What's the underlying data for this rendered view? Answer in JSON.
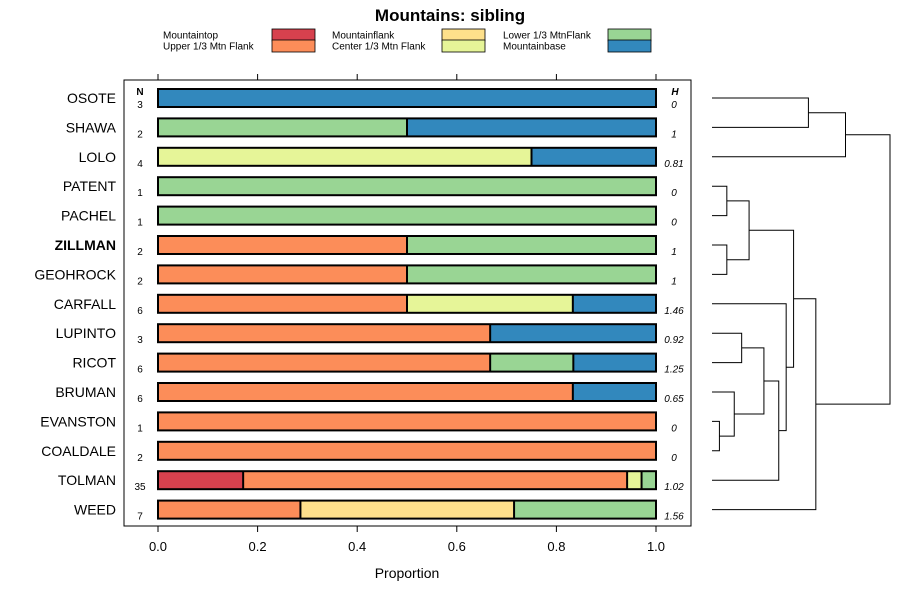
{
  "chart_data": {
    "type": "stacked-bar-horizontal",
    "title": "Mountains: sibling",
    "xlabel": "Proportion",
    "xlim": [
      0,
      1
    ],
    "xticks": [
      "0.0",
      "0.2",
      "0.4",
      "0.6",
      "0.8",
      "1.0"
    ],
    "n_header": "N",
    "h_header": "H",
    "legend": [
      {
        "name": "Mountaintop",
        "color": "#d7414e"
      },
      {
        "name": "Upper 1/3 Mtn Flank",
        "color": "#fc8d59"
      },
      {
        "name": "Mountainflank",
        "color": "#fee08b"
      },
      {
        "name": "Center 1/3 Mtn Flank",
        "color": "#e6f598"
      },
      {
        "name": "Lower 1/3 MtnFlank",
        "color": "#99d594"
      },
      {
        "name": "Mountainbase",
        "color": "#3288bd"
      }
    ],
    "rows": [
      {
        "label": "OSOTE",
        "bold": false,
        "n": "3",
        "h": "0",
        "values": [
          0,
          0,
          0,
          0,
          0,
          1
        ]
      },
      {
        "label": "SHAWA",
        "bold": false,
        "n": "2",
        "h": "1",
        "values": [
          0,
          0,
          0,
          0,
          0.5,
          0.5
        ]
      },
      {
        "label": "LOLO",
        "bold": false,
        "n": "4",
        "h": "0.81",
        "values": [
          0,
          0,
          0,
          0.75,
          0,
          0.25
        ]
      },
      {
        "label": "PATENT",
        "bold": false,
        "n": "1",
        "h": "0",
        "values": [
          0,
          0,
          0,
          0,
          1,
          0
        ]
      },
      {
        "label": "PACHEL",
        "bold": false,
        "n": "1",
        "h": "0",
        "values": [
          0,
          0,
          0,
          0,
          1,
          0
        ]
      },
      {
        "label": "ZILLMAN",
        "bold": true,
        "n": "2",
        "h": "1",
        "values": [
          0,
          0.5,
          0,
          0,
          0.5,
          0
        ]
      },
      {
        "label": "GEOHROCK",
        "bold": false,
        "n": "2",
        "h": "1",
        "values": [
          0,
          0.5,
          0,
          0,
          0.5,
          0
        ]
      },
      {
        "label": "CARFALL",
        "bold": false,
        "n": "6",
        "h": "1.46",
        "values": [
          0,
          0.5,
          0,
          0.333,
          0,
          0.167
        ]
      },
      {
        "label": "LUPINTO",
        "bold": false,
        "n": "3",
        "h": "0.92",
        "values": [
          0,
          0.667,
          0,
          0,
          0,
          0.333
        ]
      },
      {
        "label": "RICOT",
        "bold": false,
        "n": "6",
        "h": "1.25",
        "values": [
          0,
          0.667,
          0,
          0,
          0.167,
          0.167
        ]
      },
      {
        "label": "BRUMAN",
        "bold": false,
        "n": "6",
        "h": "0.65",
        "values": [
          0,
          0.833,
          0,
          0,
          0,
          0.167
        ]
      },
      {
        "label": "EVANSTON",
        "bold": false,
        "n": "1",
        "h": "0",
        "values": [
          0,
          1,
          0,
          0,
          0,
          0
        ]
      },
      {
        "label": "COALDALE",
        "bold": false,
        "n": "2",
        "h": "0",
        "values": [
          0,
          1,
          0,
          0,
          0,
          0
        ]
      },
      {
        "label": "TOLMAN",
        "bold": false,
        "n": "35",
        "h": "1.02",
        "values": [
          0.171,
          0.771,
          0,
          0.029,
          0.029,
          0
        ]
      },
      {
        "label": "WEED",
        "bold": false,
        "n": "7",
        "h": "1.56",
        "values": [
          0,
          0.286,
          0.429,
          0,
          0.286,
          0
        ]
      }
    ],
    "dendrogram": {
      "leaves": [
        "OSOTE",
        "SHAWA",
        "LOLO",
        "PATENT",
        "PACHEL",
        "ZILLMAN",
        "GEOHROCK",
        "CARFALL",
        "LUPINTO",
        "RICOT",
        "BRUMAN",
        "EVANSTON",
        "COALDALE",
        "TOLMAN",
        "WEED"
      ],
      "merges": [
        {
          "a": 0,
          "b": 1,
          "height": 0.13
        },
        {
          "a": "n0",
          "b": 2,
          "height": 0.18
        },
        {
          "a": 3,
          "b": 4,
          "height": 0.02
        },
        {
          "a": 5,
          "b": 6,
          "height": 0.02
        },
        {
          "a": "n2",
          "b": "n3",
          "height": 0.05
        },
        {
          "a": 11,
          "b": 12,
          "height": 0.01
        },
        {
          "a": 8,
          "b": 9,
          "height": 0.04
        },
        {
          "a": 10,
          "b": "n5",
          "height": 0.03
        },
        {
          "a": "n7",
          "b": "n6",
          "height": 0.07
        },
        {
          "a": "n8",
          "b": 13,
          "height": 0.09
        },
        {
          "a": 7,
          "b": "n9",
          "height": 0.1
        },
        {
          "a": "n4",
          "b": "n10",
          "height": 0.11
        },
        {
          "a": "n11",
          "b": 14,
          "height": 0.14
        },
        {
          "a": "n1",
          "b": "n12",
          "height": 0.24
        }
      ]
    }
  }
}
